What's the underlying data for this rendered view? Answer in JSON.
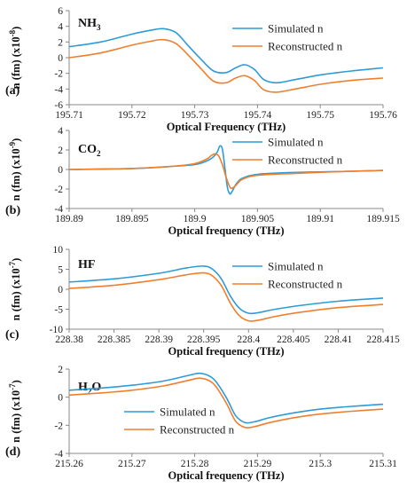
{
  "colors": {
    "simulated": "#2e9bd6",
    "reconstructed": "#f07f2d",
    "axis": "#888888"
  },
  "chart_data": [
    {
      "type": "line",
      "panel": "(a)",
      "species": {
        "main": "NH",
        "sub": "3"
      },
      "xlabel": "Optical Frequency (THz)",
      "ylabel": {
        "main": "n (fm) (x10",
        "exp": "-8",
        "close": ")"
      },
      "xlim": [
        195.71,
        195.76
      ],
      "ylim": [
        -6,
        6
      ],
      "xticks": [
        "195.71",
        "195.72",
        "195.73",
        "195.74",
        "195.75",
        "195.76"
      ],
      "yticks": [
        "-6",
        "-4",
        "-2",
        "0",
        "2",
        "4",
        "6"
      ],
      "legend_position": "top-right",
      "series": [
        {
          "name": "Simulated n",
          "color": "simulated",
          "x": [
            195.71,
            195.715,
            195.72,
            195.723,
            195.725,
            195.727,
            195.729,
            195.731,
            195.733,
            195.735,
            195.7365,
            195.738,
            195.7395,
            195.741,
            195.743,
            195.746,
            195.75,
            195.755,
            195.76
          ],
          "y": [
            1.4,
            2.0,
            3.0,
            3.5,
            3.7,
            3.2,
            1.5,
            -0.2,
            -1.7,
            -1.9,
            -1.3,
            -0.9,
            -1.5,
            -2.8,
            -3.2,
            -2.8,
            -2.2,
            -1.7,
            -1.3
          ]
        },
        {
          "name": "Reconstructed n",
          "color": "reconstructed",
          "x": [
            195.71,
            195.715,
            195.72,
            195.723,
            195.725,
            195.727,
            195.729,
            195.731,
            195.733,
            195.735,
            195.7365,
            195.738,
            195.7395,
            195.741,
            195.743,
            195.746,
            195.75,
            195.755,
            195.76
          ],
          "y": [
            0.0,
            0.6,
            1.6,
            2.1,
            2.3,
            1.8,
            0.3,
            -1.4,
            -3.0,
            -3.2,
            -2.6,
            -2.3,
            -2.9,
            -4.1,
            -4.4,
            -4.0,
            -3.4,
            -2.9,
            -2.6
          ]
        }
      ]
    },
    {
      "type": "line",
      "panel": "(b)",
      "species": {
        "main": "CO",
        "sub": "2"
      },
      "xlabel": "Optical frequency (THz)",
      "ylabel": {
        "main": "n (fm) (x10",
        "exp": "-9",
        "close": ")"
      },
      "xlim": [
        189.89,
        189.915
      ],
      "ylim": [
        -4,
        4
      ],
      "xticks": [
        "189.89",
        "189.895",
        "189.9",
        "189.905",
        "189.91",
        "189.915"
      ],
      "yticks": [
        "-4",
        "-2",
        "0",
        "2",
        "4"
      ],
      "legend_position": "top-right",
      "series": [
        {
          "name": "Simulated n",
          "color": "simulated",
          "x": [
            189.89,
            189.895,
            189.898,
            189.9,
            189.901,
            189.9015,
            189.9018,
            189.902,
            189.9022,
            189.9024,
            189.9026,
            189.9028,
            189.903,
            189.9033,
            189.9038,
            189.905,
            189.908,
            189.912,
            189.915
          ],
          "y": [
            0.0,
            0.1,
            0.3,
            0.5,
            0.9,
            1.3,
            1.8,
            2.4,
            2.1,
            0.2,
            -1.8,
            -2.5,
            -2.2,
            -1.5,
            -0.9,
            -0.5,
            -0.3,
            -0.2,
            -0.1
          ]
        },
        {
          "name": "Reconstructed n",
          "color": "reconstructed",
          "x": [
            189.89,
            189.895,
            189.898,
            189.9,
            189.901,
            189.9013,
            189.9016,
            189.9019,
            189.9022,
            189.9025,
            189.9028,
            189.903,
            189.9033,
            189.9038,
            189.905,
            189.908,
            189.912,
            189.915
          ],
          "y": [
            0.0,
            0.1,
            0.3,
            0.6,
            1.1,
            1.4,
            1.6,
            1.4,
            0.5,
            -0.8,
            -1.8,
            -1.9,
            -1.6,
            -1.0,
            -0.6,
            -0.4,
            -0.2,
            -0.1
          ]
        }
      ]
    },
    {
      "type": "line",
      "panel": "(c)",
      "species": {
        "main": "HF",
        "sub": ""
      },
      "xlabel": "Optical frequency (THz)",
      "ylabel": {
        "main": "n (fm) (x10",
        "exp": "-7",
        "close": ")"
      },
      "xlim": [
        228.38,
        228.415
      ],
      "ylim": [
        -10,
        10
      ],
      "xticks": [
        "228.38",
        "228.385",
        "228.39",
        "228.395",
        "228.4",
        "228.405",
        "228.41",
        "228.415"
      ],
      "yticks": [
        "-10",
        "-5",
        "0",
        "5",
        "10"
      ],
      "legend_position": "top-right",
      "series": [
        {
          "name": "Simulated n",
          "color": "simulated",
          "x": [
            228.38,
            228.385,
            228.39,
            228.393,
            228.395,
            228.396,
            228.397,
            228.398,
            228.399,
            228.4,
            228.401,
            228.403,
            228.406,
            228.41,
            228.415
          ],
          "y": [
            1.8,
            2.6,
            4.0,
            5.3,
            5.8,
            5.0,
            2.5,
            -1.8,
            -4.8,
            -6.0,
            -5.9,
            -5.0,
            -4.0,
            -3.0,
            -2.2
          ]
        },
        {
          "name": "Reconstructed n",
          "color": "reconstructed",
          "x": [
            228.38,
            228.385,
            228.39,
            228.393,
            228.395,
            228.396,
            228.397,
            228.398,
            228.399,
            228.4,
            228.401,
            228.403,
            228.406,
            228.41,
            228.415
          ],
          "y": [
            0.2,
            1.0,
            2.4,
            3.6,
            4.1,
            3.3,
            0.8,
            -3.6,
            -6.7,
            -7.9,
            -7.8,
            -6.8,
            -5.7,
            -4.6,
            -3.8
          ]
        }
      ]
    },
    {
      "type": "line",
      "panel": "(d)",
      "species": {
        "main": "H",
        "sub": "2",
        "after": "O"
      },
      "xlabel": "Optical frequency (THz)",
      "ylabel": {
        "main": "n (fm) (x10",
        "exp": "-7",
        "close": ")"
      },
      "xlim": [
        215.26,
        215.31
      ],
      "ylim": [
        -4,
        2
      ],
      "xticks": [
        "215.26",
        "215.27",
        "215.28",
        "215.29",
        "215.3",
        "215.31"
      ],
      "yticks": [
        "-4",
        "-2",
        "0",
        "2"
      ],
      "legend_position": "center-left",
      "series": [
        {
          "name": "Simulated n",
          "color": "simulated",
          "x": [
            215.26,
            215.265,
            215.27,
            215.275,
            215.279,
            215.281,
            215.283,
            215.285,
            215.2865,
            215.288,
            215.2895,
            215.292,
            215.296,
            215.3,
            215.305,
            215.31
          ],
          "y": [
            0.5,
            0.65,
            0.85,
            1.15,
            1.55,
            1.7,
            1.3,
            0.0,
            -1.3,
            -1.8,
            -1.75,
            -1.45,
            -1.1,
            -0.85,
            -0.65,
            -0.5
          ]
        },
        {
          "name": "Reconstructed n",
          "color": "reconstructed",
          "x": [
            215.26,
            215.265,
            215.27,
            215.275,
            215.279,
            215.281,
            215.283,
            215.285,
            215.2865,
            215.288,
            215.2895,
            215.292,
            215.296,
            215.3,
            215.305,
            215.31
          ],
          "y": [
            0.15,
            0.3,
            0.5,
            0.8,
            1.2,
            1.35,
            0.95,
            -0.4,
            -1.7,
            -2.15,
            -2.1,
            -1.8,
            -1.45,
            -1.2,
            -1.0,
            -0.85
          ]
        }
      ]
    }
  ]
}
